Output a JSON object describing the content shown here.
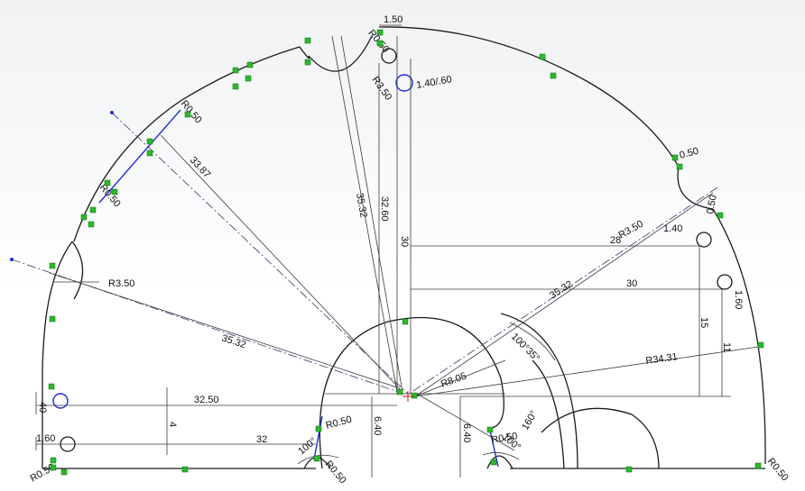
{
  "colors": {
    "geometry": "#1a1a1a",
    "dimension": "#3a3a3a",
    "selected": "#1f2bd6",
    "relation": "#2cb82c"
  },
  "dimensions": {
    "d_1_50": "1.50",
    "d_r0_50_top": "R0.50",
    "d_r3_50_top": "R3.50",
    "d_1_40_60": "1.40/.60",
    "d_r0_50_left": "R0.50",
    "d_33_87": "33.87",
    "d_35_32_top": "35.32",
    "d_32_60": "32.60",
    "d_30_vert": "30",
    "d_r0_50_mid": "R0.50",
    "d_r3_50_left": "R3.50",
    "d_35_32_left": "35.32",
    "d_28": "28",
    "d_r3_50_right": "R3.50",
    "d_1_40_right": "1.40",
    "d_0_50_right": "0.50",
    "d_30_horiz": "30",
    "d_35_32_right": "35.32",
    "d_1_60_right": "1.60",
    "d_15": "15",
    "d_11": "11",
    "d_100_35": "100°35°",
    "d_r34_31": "R34.31",
    "d_r8_05": "R8.05",
    "d_32_50": "32.50",
    "d_4": "4",
    "d_40": "40",
    "d_6_40_left": "6.40",
    "d_6_40_right": "6.40",
    "d_r0_50_bl": "R0.50",
    "d_r0_50_br": "R0.50",
    "d_100_left": "100°",
    "d_100_right": "100°",
    "d_1_60_left": "1.60",
    "d_32": "32",
    "d_160": "160°",
    "d_r0_50_corner_left": "R0.50",
    "d_r0_50_corner_right": "R0.50",
    "d_0_50_arc": "0.50",
    "d_r0_50_low": "R0.50"
  }
}
